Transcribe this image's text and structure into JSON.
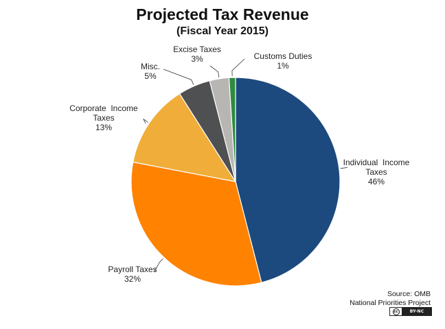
{
  "chart_data": {
    "type": "pie",
    "title": "Projected Tax Revenue",
    "subtitle": "(Fiscal Year 2015)",
    "slices": [
      {
        "label": "Individual Income Taxes",
        "label_lines": [
          "Individual  Income",
          "Taxes"
        ],
        "value": 46,
        "value_label": "46%",
        "color": "#1c4a7e"
      },
      {
        "label": "Payroll Taxes",
        "label_lines": [
          "Payroll Taxes"
        ],
        "value": 32,
        "value_label": "32%",
        "color": "#ff8200"
      },
      {
        "label": "Corporate Income Taxes",
        "label_lines": [
          "Corporate  Income",
          "Taxes"
        ],
        "value": 13,
        "value_label": "13%",
        "color": "#f0ad3a"
      },
      {
        "label": "Misc.",
        "label_lines": [
          "Misc."
        ],
        "value": 5,
        "value_label": "5%",
        "color": "#4f5051"
      },
      {
        "label": "Excise Taxes",
        "label_lines": [
          "Excise Taxes"
        ],
        "value": 3,
        "value_label": "3%",
        "color": "#b7b6b3"
      },
      {
        "label": "Customs Duties",
        "label_lines": [
          "Customs Duties"
        ],
        "value": 1,
        "value_label": "1%",
        "color": "#2e8b3f"
      }
    ],
    "start_position": "12 o'clock, clockwise"
  },
  "source": {
    "line1": "Source: OMB",
    "line2": "National Priorities Project"
  },
  "license": {
    "badge": "cc",
    "terms": "BY-NC"
  }
}
